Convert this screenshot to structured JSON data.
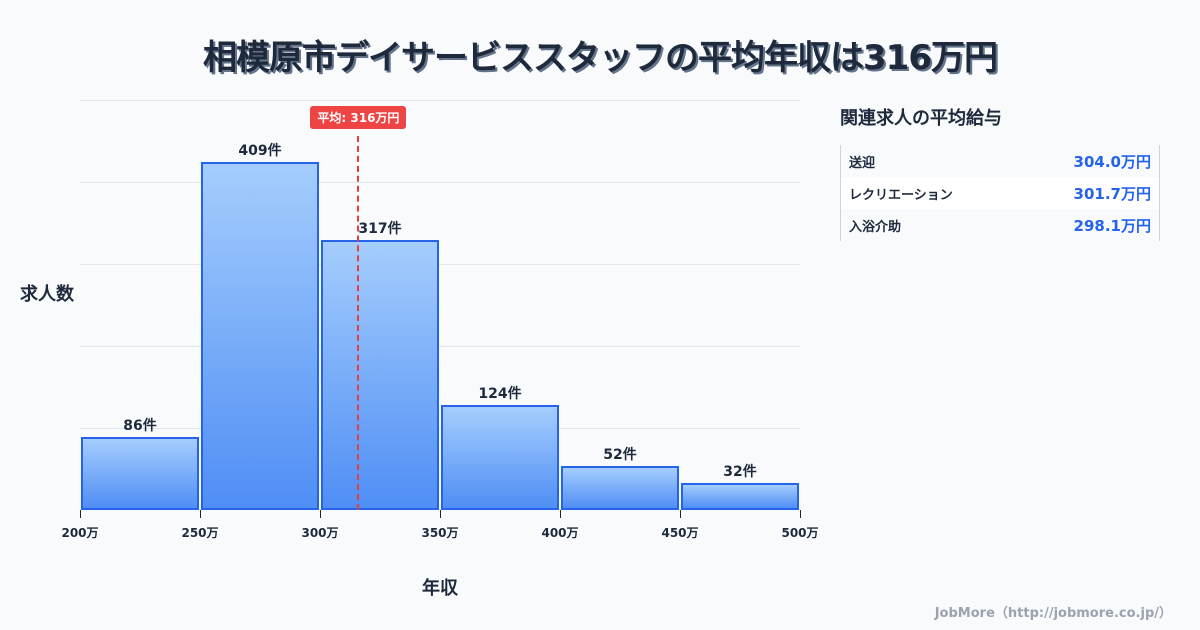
{
  "title": "相模原市デイサービススタッフの平均年収は316万円",
  "chart_data": {
    "type": "bar",
    "title": "相模原市デイサービススタッフの平均年収は316万円",
    "xlabel": "年収",
    "ylabel": "求人数",
    "categories": [
      "200万-250万",
      "250万-300万",
      "300万-350万",
      "350万-400万",
      "400万-450万",
      "450万-500万"
    ],
    "x_ticks": [
      "200万",
      "250万",
      "300万",
      "350万",
      "400万",
      "450万",
      "500万"
    ],
    "values": [
      86,
      409,
      317,
      124,
      52,
      32
    ],
    "value_labels": [
      "86件",
      "409件",
      "317件",
      "124件",
      "52件",
      "32件"
    ],
    "mean": 316,
    "mean_label": "平均: 316万円",
    "grid": true,
    "ylim": [
      0,
      482
    ]
  },
  "axis": {
    "xlabel": "年収",
    "ylabel": "求人数"
  },
  "side": {
    "title": "関連求人の平均給与",
    "rows": [
      {
        "name": "送迎",
        "value": "304.0万円"
      },
      {
        "name": "レクリエーション",
        "value": "301.7万円"
      },
      {
        "name": "入浴介助",
        "value": "298.1万円"
      }
    ]
  },
  "footer": "JobMore（http://jobmore.co.jp/）",
  "colors": {
    "bar_border": "#2563eb",
    "mean_line": "#ef4444",
    "value_text": "#2563eb"
  }
}
